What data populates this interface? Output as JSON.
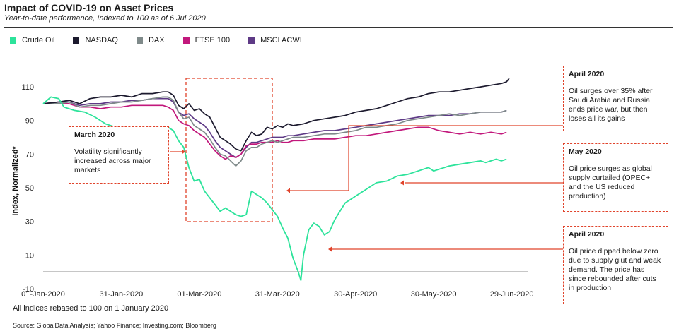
{
  "header": {
    "title": "Impact of COVID-19 on Asset Prices",
    "subtitle": "Year-to-date performance, Indexed to 100 as of 6 Jul 2020"
  },
  "legend": [
    {
      "name": "Crude Oil",
      "color": "#2de39b"
    },
    {
      "name": "NASDAQ",
      "color": "#1c1a2e"
    },
    {
      "name": "DAX",
      "color": "#7f8a8a"
    },
    {
      "name": "FTSE 100",
      "color": "#c2187c"
    },
    {
      "name": "MSCI ACWI",
      "color": "#5e3a86"
    }
  ],
  "callouts": {
    "march": {
      "title": "March 2020",
      "text": "Volatility significantly increased across major markets"
    },
    "april_top": {
      "title": "April 2020",
      "text": "Oil surges over 35%  after Saudi Arabia and Russia ends price war, but then loses all its gains"
    },
    "may": {
      "title": "May 2020",
      "text": "Oil price surges as global supply curtailed (OPEC+ and the US reduced production)"
    },
    "april_bottom": {
      "title": "April 2020",
      "text": "Oil price dipped below zero due to supply glut and weak demand. The price has since rebounded after cuts in production"
    }
  },
  "footnote": "All indices rebased to 100 on 1 January  2020",
  "source": "Source: GlobalData Analysis; Yahoo Finance; Investing.com; Bloomberg",
  "chart_data": {
    "type": "line",
    "ylabel": "Index, Normalized*",
    "xlabel": "",
    "ylim": [
      -10,
      118
    ],
    "yticks": [
      110,
      90,
      70,
      50,
      30,
      10,
      -10
    ],
    "xticks": [
      "01-Jan-2020",
      "31-Jan-2020",
      "01-Mar-2020",
      "31-Mar-2020",
      "30-Apr-2020",
      "30-May-2020",
      "29-Jun-2020"
    ],
    "x_unit": "days since 01-Jan-2020",
    "annotations": [
      "March 2020 volatility region",
      "April 2020 oil surge",
      "May 2020 oil surge",
      "April 2020 oil below zero"
    ],
    "series": [
      {
        "name": "Crude Oil",
        "color": "#2de39b",
        "points": [
          [
            0,
            100
          ],
          [
            3,
            104
          ],
          [
            6,
            103
          ],
          [
            8,
            98
          ],
          [
            12,
            96
          ],
          [
            16,
            95
          ],
          [
            20,
            92
          ],
          [
            24,
            88
          ],
          [
            28,
            86
          ],
          [
            32,
            84
          ],
          [
            36,
            85
          ],
          [
            40,
            83
          ],
          [
            44,
            84
          ],
          [
            48,
            86
          ],
          [
            50,
            84
          ],
          [
            52,
            78
          ],
          [
            54,
            74
          ],
          [
            56,
            62
          ],
          [
            58,
            54
          ],
          [
            60,
            55
          ],
          [
            62,
            48
          ],
          [
            64,
            44
          ],
          [
            66,
            40
          ],
          [
            68,
            36
          ],
          [
            70,
            38
          ],
          [
            72,
            36
          ],
          [
            74,
            34
          ],
          [
            76,
            33
          ],
          [
            78,
            34
          ],
          [
            80,
            48
          ],
          [
            82,
            46
          ],
          [
            84,
            44
          ],
          [
            86,
            41
          ],
          [
            88,
            37
          ],
          [
            90,
            33
          ],
          [
            92,
            26
          ],
          [
            94,
            20
          ],
          [
            96,
            8
          ],
          [
            98,
            0
          ],
          [
            99,
            -5
          ],
          [
            100,
            10
          ],
          [
            102,
            25
          ],
          [
            104,
            29
          ],
          [
            106,
            27
          ],
          [
            108,
            22
          ],
          [
            110,
            24
          ],
          [
            112,
            31
          ],
          [
            114,
            36
          ],
          [
            116,
            41
          ],
          [
            118,
            43
          ],
          [
            120,
            45
          ],
          [
            124,
            49
          ],
          [
            128,
            53
          ],
          [
            132,
            54
          ],
          [
            136,
            57
          ],
          [
            140,
            58
          ],
          [
            144,
            60
          ],
          [
            148,
            62
          ],
          [
            150,
            60
          ],
          [
            152,
            61
          ],
          [
            156,
            63
          ],
          [
            160,
            64
          ],
          [
            164,
            65
          ],
          [
            168,
            66
          ],
          [
            170,
            65
          ],
          [
            172,
            66
          ],
          [
            174,
            67
          ],
          [
            176,
            66
          ],
          [
            178,
            67
          ]
        ]
      },
      {
        "name": "NASDAQ",
        "color": "#1c1a2e",
        "points": [
          [
            0,
            100
          ],
          [
            6,
            101
          ],
          [
            10,
            102
          ],
          [
            14,
            100
          ],
          [
            18,
            103
          ],
          [
            22,
            104
          ],
          [
            26,
            104
          ],
          [
            30,
            105
          ],
          [
            34,
            104
          ],
          [
            38,
            106
          ],
          [
            42,
            106
          ],
          [
            46,
            107
          ],
          [
            48,
            107
          ],
          [
            50,
            105
          ],
          [
            52,
            99
          ],
          [
            54,
            97
          ],
          [
            56,
            100
          ],
          [
            58,
            96
          ],
          [
            60,
            97
          ],
          [
            62,
            94
          ],
          [
            64,
            92
          ],
          [
            66,
            86
          ],
          [
            68,
            80
          ],
          [
            70,
            78
          ],
          [
            72,
            76
          ],
          [
            74,
            73
          ],
          [
            76,
            72
          ],
          [
            78,
            78
          ],
          [
            80,
            83
          ],
          [
            82,
            81
          ],
          [
            84,
            82
          ],
          [
            86,
            86
          ],
          [
            88,
            85
          ],
          [
            90,
            87
          ],
          [
            92,
            86
          ],
          [
            94,
            88
          ],
          [
            96,
            87
          ],
          [
            100,
            88
          ],
          [
            104,
            90
          ],
          [
            108,
            91
          ],
          [
            112,
            92
          ],
          [
            116,
            93
          ],
          [
            120,
            95
          ],
          [
            124,
            96
          ],
          [
            128,
            97
          ],
          [
            132,
            99
          ],
          [
            136,
            101
          ],
          [
            140,
            103
          ],
          [
            144,
            104
          ],
          [
            148,
            106
          ],
          [
            152,
            107
          ],
          [
            156,
            107
          ],
          [
            160,
            108
          ],
          [
            164,
            109
          ],
          [
            168,
            110
          ],
          [
            172,
            111
          ],
          [
            176,
            112
          ],
          [
            178,
            113
          ],
          [
            179,
            115
          ]
        ]
      },
      {
        "name": "DAX",
        "color": "#7f8a8a",
        "points": [
          [
            0,
            100
          ],
          [
            6,
            100
          ],
          [
            10,
            101
          ],
          [
            14,
            98
          ],
          [
            18,
            99
          ],
          [
            22,
            99
          ],
          [
            26,
            100
          ],
          [
            30,
            101
          ],
          [
            34,
            101
          ],
          [
            38,
            102
          ],
          [
            42,
            103
          ],
          [
            46,
            104
          ],
          [
            48,
            104
          ],
          [
            50,
            102
          ],
          [
            52,
            95
          ],
          [
            54,
            91
          ],
          [
            56,
            92
          ],
          [
            58,
            87
          ],
          [
            60,
            85
          ],
          [
            62,
            83
          ],
          [
            64,
            79
          ],
          [
            66,
            74
          ],
          [
            68,
            70
          ],
          [
            70,
            69
          ],
          [
            72,
            66
          ],
          [
            74,
            63
          ],
          [
            76,
            66
          ],
          [
            78,
            72
          ],
          [
            80,
            74
          ],
          [
            82,
            74
          ],
          [
            84,
            76
          ],
          [
            86,
            77
          ],
          [
            88,
            78
          ],
          [
            90,
            77
          ],
          [
            92,
            78
          ],
          [
            94,
            79
          ],
          [
            96,
            80
          ],
          [
            100,
            80
          ],
          [
            104,
            81
          ],
          [
            108,
            82
          ],
          [
            112,
            82
          ],
          [
            116,
            83
          ],
          [
            120,
            84
          ],
          [
            124,
            86
          ],
          [
            128,
            86
          ],
          [
            132,
            87
          ],
          [
            136,
            88
          ],
          [
            140,
            90
          ],
          [
            144,
            91
          ],
          [
            148,
            92
          ],
          [
            152,
            93
          ],
          [
            156,
            94
          ],
          [
            160,
            93
          ],
          [
            164,
            94
          ],
          [
            168,
            95
          ],
          [
            172,
            95
          ],
          [
            176,
            95
          ],
          [
            178,
            96
          ]
        ]
      },
      {
        "name": "FTSE 100",
        "color": "#c2187c",
        "points": [
          [
            0,
            100
          ],
          [
            6,
            100
          ],
          [
            10,
            100
          ],
          [
            14,
            98
          ],
          [
            18,
            98
          ],
          [
            22,
            97
          ],
          [
            26,
            98
          ],
          [
            30,
            98
          ],
          [
            34,
            99
          ],
          [
            38,
            99
          ],
          [
            42,
            99
          ],
          [
            46,
            99
          ],
          [
            48,
            98
          ],
          [
            50,
            96
          ],
          [
            52,
            90
          ],
          [
            54,
            88
          ],
          [
            56,
            87
          ],
          [
            58,
            84
          ],
          [
            60,
            82
          ],
          [
            62,
            80
          ],
          [
            64,
            76
          ],
          [
            66,
            72
          ],
          [
            68,
            69
          ],
          [
            70,
            67
          ],
          [
            72,
            69
          ],
          [
            74,
            68
          ],
          [
            76,
            70
          ],
          [
            78,
            75
          ],
          [
            80,
            76
          ],
          [
            82,
            76
          ],
          [
            84,
            77
          ],
          [
            86,
            77
          ],
          [
            88,
            77
          ],
          [
            90,
            78
          ],
          [
            92,
            77
          ],
          [
            94,
            77
          ],
          [
            96,
            78
          ],
          [
            100,
            78
          ],
          [
            104,
            79
          ],
          [
            108,
            79
          ],
          [
            112,
            79
          ],
          [
            116,
            80
          ],
          [
            120,
            81
          ],
          [
            124,
            81
          ],
          [
            128,
            82
          ],
          [
            132,
            83
          ],
          [
            136,
            84
          ],
          [
            140,
            85
          ],
          [
            144,
            86
          ],
          [
            148,
            86
          ],
          [
            152,
            84
          ],
          [
            156,
            83
          ],
          [
            160,
            82
          ],
          [
            164,
            83
          ],
          [
            168,
            82
          ],
          [
            172,
            83
          ],
          [
            176,
            82
          ],
          [
            178,
            83
          ]
        ]
      },
      {
        "name": "MSCI ACWI",
        "color": "#5e3a86",
        "points": [
          [
            0,
            100
          ],
          [
            6,
            101
          ],
          [
            10,
            101
          ],
          [
            14,
            99
          ],
          [
            18,
            100
          ],
          [
            22,
            100
          ],
          [
            26,
            101
          ],
          [
            30,
            101
          ],
          [
            34,
            102
          ],
          [
            38,
            102
          ],
          [
            42,
            103
          ],
          [
            46,
            103
          ],
          [
            48,
            103
          ],
          [
            50,
            101
          ],
          [
            52,
            95
          ],
          [
            54,
            93
          ],
          [
            56,
            94
          ],
          [
            58,
            91
          ],
          [
            60,
            89
          ],
          [
            62,
            87
          ],
          [
            64,
            83
          ],
          [
            66,
            78
          ],
          [
            68,
            74
          ],
          [
            70,
            72
          ],
          [
            72,
            70
          ],
          [
            74,
            68
          ],
          [
            76,
            70
          ],
          [
            78,
            74
          ],
          [
            80,
            77
          ],
          [
            82,
            77
          ],
          [
            84,
            78
          ],
          [
            86,
            79
          ],
          [
            88,
            80
          ],
          [
            90,
            80
          ],
          [
            92,
            80
          ],
          [
            94,
            81
          ],
          [
            96,
            81
          ],
          [
            100,
            82
          ],
          [
            104,
            83
          ],
          [
            108,
            84
          ],
          [
            112,
            84
          ],
          [
            116,
            85
          ],
          [
            120,
            86
          ],
          [
            124,
            87
          ],
          [
            128,
            88
          ],
          [
            132,
            89
          ],
          [
            136,
            90
          ],
          [
            140,
            91
          ],
          [
            144,
            92
          ],
          [
            148,
            93
          ],
          [
            152,
            93
          ],
          [
            156,
            93
          ],
          [
            160,
            94
          ],
          [
            164,
            94
          ],
          [
            168,
            95
          ],
          [
            172,
            95
          ],
          [
            176,
            95
          ],
          [
            178,
            96
          ]
        ]
      }
    ]
  }
}
